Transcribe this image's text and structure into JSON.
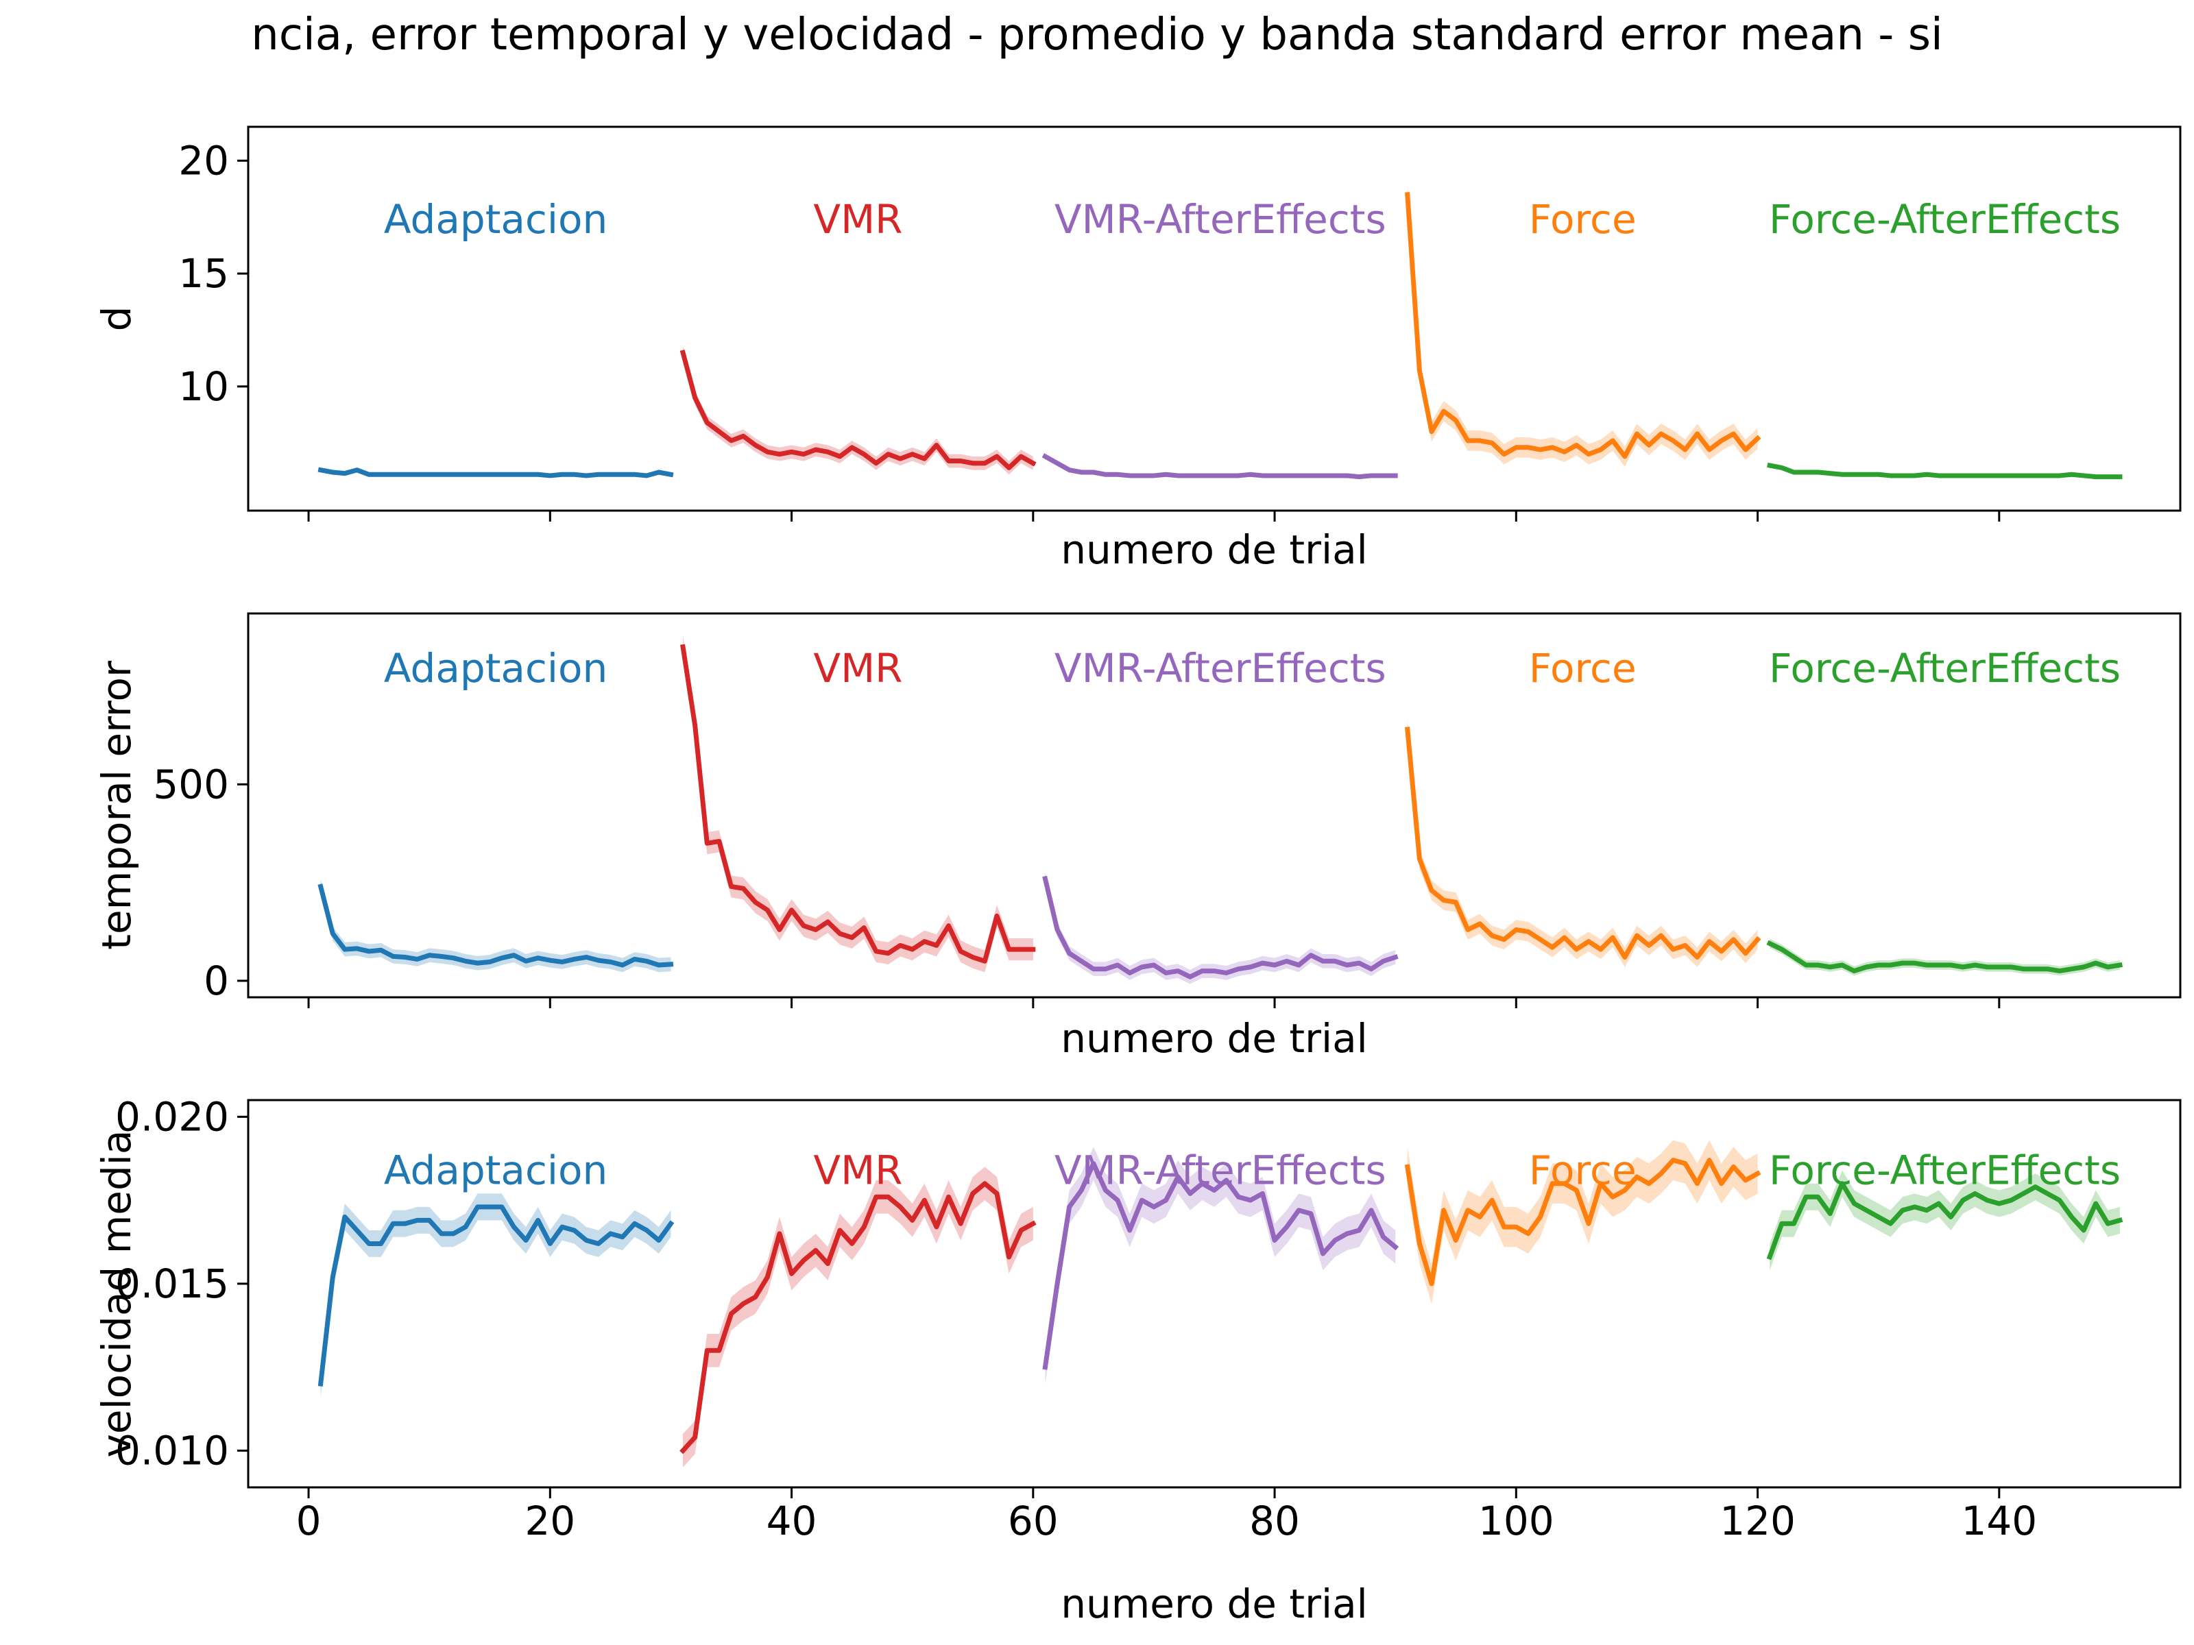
{
  "figure": {
    "title": "ncia, error temporal y velocidad - promedio y banda standard error mean - si"
  },
  "colors": {
    "Adaptacion": "#1f77b4",
    "VMR": "#d62728",
    "VMR-AfterEffects": "#9467bd",
    "Force": "#ff7f0e",
    "Force-AfterEffects": "#2ca02c"
  },
  "chart_data": [
    {
      "type": "line",
      "title": "",
      "xlabel": "numero de trial",
      "ylabel": "d",
      "xlim": [
        -5,
        155
      ],
      "ylim": [
        4.5,
        21.5
      ],
      "x_ticks": [
        0,
        20,
        40,
        60,
        80,
        100,
        120,
        140
      ],
      "x_tick_labels_visible": false,
      "y_ticks": [
        10,
        15,
        20
      ],
      "y_tick_labels": [
        "10",
        "15",
        "20"
      ],
      "grid": false,
      "phase_labels": [
        {
          "text": "Adaptacion",
          "x": 15.5,
          "y": 17.4
        },
        {
          "text": "VMR",
          "x": 45.5,
          "y": 17.4
        },
        {
          "text": "VMR-AfterEffects",
          "x": 75.5,
          "y": 17.4
        },
        {
          "text": "Force",
          "x": 105.5,
          "y": 17.4
        },
        {
          "text": "Force-AfterEffects",
          "x": 135.5,
          "y": 17.4
        }
      ],
      "series": [
        {
          "key": "Adaptacion",
          "x_start": 1,
          "band": 0.1,
          "values": [
            6.3,
            6.2,
            6.15,
            6.3,
            6.1,
            6.1,
            6.1,
            6.1,
            6.1,
            6.1,
            6.1,
            6.1,
            6.1,
            6.1,
            6.1,
            6.1,
            6.1,
            6.1,
            6.1,
            6.05,
            6.1,
            6.1,
            6.05,
            6.1,
            6.1,
            6.1,
            6.1,
            6.05,
            6.2,
            6.1
          ]
        },
        {
          "key": "VMR",
          "x_start": 31,
          "band": 0.3,
          "values": [
            11.5,
            9.5,
            8.4,
            8.0,
            7.6,
            7.8,
            7.4,
            7.1,
            7.0,
            7.1,
            7.0,
            7.2,
            7.1,
            6.9,
            7.3,
            7.0,
            6.6,
            7.0,
            6.8,
            7.0,
            6.8,
            7.4,
            6.7,
            6.7,
            6.6,
            6.6,
            6.9,
            6.4,
            6.9,
            6.6
          ]
        },
        {
          "key": "VMR-AfterEffects",
          "x_start": 61,
          "band": 0.1,
          "values": [
            6.9,
            6.6,
            6.3,
            6.2,
            6.2,
            6.1,
            6.1,
            6.05,
            6.05,
            6.05,
            6.1,
            6.05,
            6.05,
            6.05,
            6.05,
            6.05,
            6.05,
            6.1,
            6.05,
            6.05,
            6.05,
            6.05,
            6.05,
            6.05,
            6.05,
            6.05,
            6.0,
            6.05,
            6.05,
            6.05
          ]
        },
        {
          "key": "Force",
          "x_start": 91,
          "band": 0.45,
          "values": [
            18.5,
            10.7,
            8.0,
            8.9,
            8.5,
            7.6,
            7.6,
            7.5,
            7.0,
            7.3,
            7.3,
            7.2,
            7.3,
            7.1,
            7.4,
            7.0,
            7.2,
            7.6,
            6.9,
            7.9,
            7.4,
            7.9,
            7.6,
            7.2,
            7.9,
            7.2,
            7.6,
            7.9,
            7.2,
            7.7
          ]
        },
        {
          "key": "Force-AfterEffects",
          "x_start": 121,
          "band": 0.08,
          "values": [
            6.5,
            6.4,
            6.2,
            6.2,
            6.2,
            6.15,
            6.1,
            6.1,
            6.1,
            6.1,
            6.05,
            6.05,
            6.05,
            6.1,
            6.05,
            6.05,
            6.05,
            6.05,
            6.05,
            6.05,
            6.05,
            6.05,
            6.05,
            6.05,
            6.05,
            6.1,
            6.05,
            6.0,
            6.0,
            6.0
          ]
        }
      ]
    },
    {
      "type": "line",
      "title": "",
      "xlabel": "numero de trial",
      "ylabel": "temporal error",
      "xlim": [
        -5,
        155
      ],
      "ylim": [
        -42,
        935
      ],
      "x_ticks": [
        0,
        20,
        40,
        60,
        80,
        100,
        120,
        140
      ],
      "x_tick_labels_visible": false,
      "y_ticks": [
        0,
        500
      ],
      "y_tick_labels": [
        "0",
        "500"
      ],
      "grid": false,
      "phase_labels": [
        {
          "text": "Adaptacion",
          "x": 15.5,
          "y": 795
        },
        {
          "text": "VMR",
          "x": 45.5,
          "y": 795
        },
        {
          "text": "VMR-AfterEffects",
          "x": 75.5,
          "y": 795
        },
        {
          "text": "Force",
          "x": 105.5,
          "y": 795
        },
        {
          "text": "Force-AfterEffects",
          "x": 135.5,
          "y": 795
        }
      ],
      "series": [
        {
          "key": "Adaptacion",
          "x_start": 1,
          "band": 18,
          "values": [
            240,
            120,
            80,
            82,
            75,
            78,
            62,
            60,
            55,
            65,
            62,
            58,
            50,
            45,
            48,
            58,
            65,
            50,
            58,
            52,
            48,
            55,
            60,
            52,
            48,
            40,
            55,
            50,
            40,
            42
          ]
        },
        {
          "key": "VMR",
          "x_start": 31,
          "band": 28,
          "values": [
            850,
            650,
            350,
            355,
            240,
            235,
            200,
            180,
            130,
            180,
            140,
            130,
            150,
            120,
            110,
            135,
            75,
            70,
            90,
            80,
            100,
            90,
            140,
            75,
            60,
            50,
            165,
            80,
            80,
            80
          ]
        },
        {
          "key": "VMR-AfterEffects",
          "x_start": 61,
          "band": 18,
          "values": [
            260,
            130,
            70,
            50,
            30,
            30,
            40,
            20,
            35,
            40,
            20,
            25,
            10,
            25,
            25,
            20,
            30,
            35,
            45,
            40,
            50,
            40,
            65,
            50,
            50,
            40,
            45,
            30,
            50,
            60
          ]
        },
        {
          "key": "Force",
          "x_start": 91,
          "band": 25,
          "values": [
            640,
            310,
            230,
            205,
            200,
            130,
            145,
            115,
            105,
            130,
            125,
            105,
            85,
            110,
            80,
            100,
            80,
            110,
            60,
            115,
            90,
            115,
            80,
            90,
            60,
            100,
            75,
            105,
            70,
            105
          ]
        },
        {
          "key": "Force-AfterEffects",
          "x_start": 121,
          "band": 12,
          "values": [
            95,
            80,
            60,
            40,
            40,
            35,
            40,
            25,
            35,
            40,
            40,
            45,
            45,
            40,
            40,
            40,
            35,
            40,
            35,
            35,
            35,
            30,
            30,
            30,
            25,
            30,
            35,
            45,
            35,
            40
          ]
        }
      ]
    },
    {
      "type": "line",
      "title": "",
      "xlabel": "numero de trial",
      "ylabel": "velocidad media",
      "xlim": [
        -5,
        155
      ],
      "ylim": [
        0.0089,
        0.0205
      ],
      "x_ticks": [
        0,
        20,
        40,
        60,
        80,
        100,
        120,
        140
      ],
      "x_tick_labels": [
        "0",
        "20",
        "40",
        "60",
        "80",
        "100",
        "120",
        "140"
      ],
      "y_ticks": [
        0.01,
        0.015,
        0.02
      ],
      "y_tick_labels": [
        "0.010",
        "0.015",
        "0.020"
      ],
      "grid": false,
      "phase_labels": [
        {
          "text": "Adaptacion",
          "x": 15.5,
          "y": 0.0184
        },
        {
          "text": "VMR",
          "x": 45.5,
          "y": 0.0184
        },
        {
          "text": "VMR-AfterEffects",
          "x": 75.5,
          "y": 0.0184
        },
        {
          "text": "Force",
          "x": 105.5,
          "y": 0.0184
        },
        {
          "text": "Force-AfterEffects",
          "x": 135.5,
          "y": 0.0184
        }
      ],
      "series": [
        {
          "key": "Adaptacion",
          "x_start": 1,
          "band": 0.0004,
          "values": [
            0.012,
            0.0152,
            0.017,
            0.0166,
            0.0162,
            0.0162,
            0.0168,
            0.0168,
            0.0169,
            0.0169,
            0.0165,
            0.0165,
            0.0167,
            0.0173,
            0.0173,
            0.0173,
            0.0167,
            0.0163,
            0.0169,
            0.0162,
            0.0167,
            0.0166,
            0.0163,
            0.0162,
            0.0165,
            0.0164,
            0.0168,
            0.0166,
            0.0163,
            0.0168
          ]
        },
        {
          "key": "VMR",
          "x_start": 31,
          "band": 0.0005,
          "values": [
            0.01,
            0.0104,
            0.013,
            0.013,
            0.0141,
            0.0144,
            0.0146,
            0.0152,
            0.0165,
            0.0153,
            0.0157,
            0.016,
            0.0156,
            0.0166,
            0.0162,
            0.0167,
            0.0176,
            0.0176,
            0.0173,
            0.0169,
            0.0175,
            0.0167,
            0.0176,
            0.0168,
            0.0177,
            0.018,
            0.0177,
            0.0158,
            0.0166,
            0.0168
          ]
        },
        {
          "key": "VMR-AfterEffects",
          "x_start": 61,
          "band": 0.0005,
          "values": [
            0.0125,
            0.015,
            0.0173,
            0.0178,
            0.0186,
            0.0178,
            0.0175,
            0.0166,
            0.0175,
            0.0173,
            0.0175,
            0.0182,
            0.0177,
            0.018,
            0.0178,
            0.0181,
            0.0176,
            0.0175,
            0.0177,
            0.0163,
            0.0167,
            0.0172,
            0.0171,
            0.0159,
            0.0163,
            0.0165,
            0.0166,
            0.0172,
            0.0164,
            0.0161
          ]
        },
        {
          "key": "Force",
          "x_start": 91,
          "band": 0.0006,
          "values": [
            0.0185,
            0.0162,
            0.015,
            0.0172,
            0.0163,
            0.0172,
            0.017,
            0.0175,
            0.0167,
            0.0167,
            0.0165,
            0.017,
            0.018,
            0.018,
            0.0178,
            0.0168,
            0.018,
            0.0176,
            0.0178,
            0.0182,
            0.018,
            0.0183,
            0.0187,
            0.0186,
            0.018,
            0.0187,
            0.018,
            0.0185,
            0.0181,
            0.0183
          ]
        },
        {
          "key": "Force-AfterEffects",
          "x_start": 121,
          "band": 0.0004,
          "values": [
            0.0158,
            0.0168,
            0.0168,
            0.0176,
            0.0176,
            0.0171,
            0.018,
            0.0174,
            0.0172,
            0.017,
            0.0168,
            0.0172,
            0.0173,
            0.0172,
            0.0174,
            0.017,
            0.0175,
            0.0177,
            0.0175,
            0.0174,
            0.0175,
            0.0177,
            0.0179,
            0.0177,
            0.0175,
            0.017,
            0.0166,
            0.0174,
            0.0168,
            0.0169
          ]
        }
      ]
    }
  ]
}
